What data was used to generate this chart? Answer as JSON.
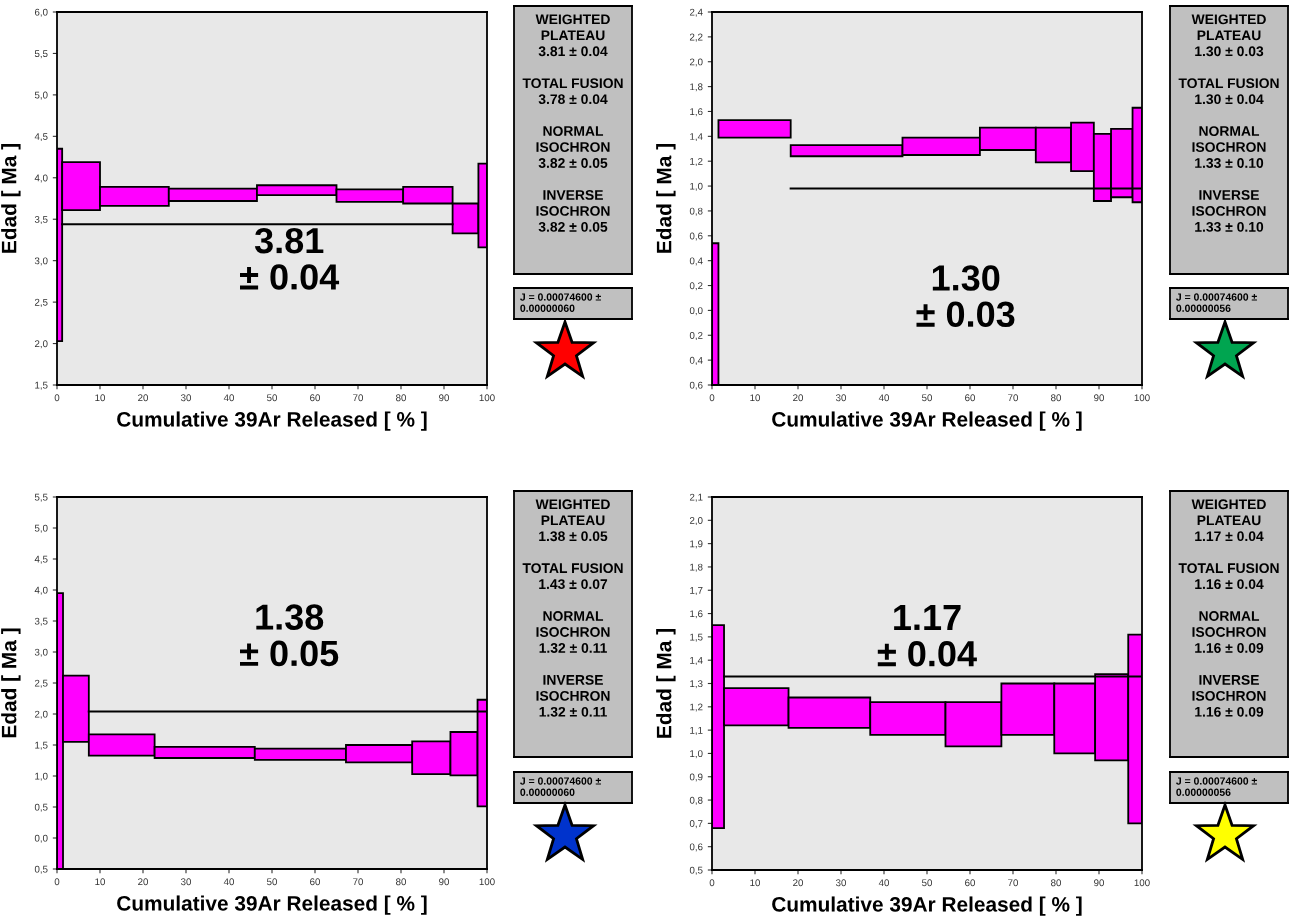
{
  "chart_data": [
    {
      "type": "histogram",
      "xlabel": "Cumulative 39Ar Released [ % ]",
      "ylabel": "Edad [ Ma ]",
      "xlim": [
        0,
        100
      ],
      "xticks": [
        0,
        10,
        20,
        30,
        40,
        50,
        60,
        70,
        80,
        90,
        100
      ],
      "ylim": [
        1.5,
        6.0
      ],
      "yticks": [
        {
          "value": 1.5,
          "label": "1,5"
        },
        {
          "value": 2.0,
          "label": "2,0"
        },
        {
          "value": 2.5,
          "label": "2,5"
        },
        {
          "value": 3.0,
          "label": "3,0"
        },
        {
          "value": 3.5,
          "label": "3,5"
        },
        {
          "value": 4.0,
          "label": "4,0"
        },
        {
          "value": 4.5,
          "label": "4,5"
        },
        {
          "value": 5.0,
          "label": "5,0"
        },
        {
          "value": 5.5,
          "label": "5,5"
        },
        {
          "value": 6.0,
          "label": "6,0"
        }
      ],
      "grid": false,
      "series": [
        {
          "color": "#ff00ff",
          "bins": [
            0,
            1.2,
            10,
            26,
            46.5,
            65,
            80.5,
            92,
            98,
            100
          ],
          "base": [
            2.03,
            3.61,
            3.66,
            3.72,
            3.79,
            3.71,
            3.69,
            3.33,
            3.16
          ],
          "values": [
            2.32,
            0.58,
            0.23,
            0.15,
            0.12,
            0.15,
            0.2,
            0.36,
            1.01
          ]
        },
        {
          "type": "line",
          "color": "#000000",
          "x": [
            1.2,
            92
          ],
          "values": [
            3.44,
            3.44
          ]
        }
      ],
      "annotations": [
        "3.81\n± 0.04",
        "WEIGHTED\nPLATEAU\n3.81 ± 0.04\n\nTOTAL FUSION\n3.78 ± 0.04\n\nNORMAL\nISOCHRON\n3.82 ± 0.05\n\nINVERSE\nISOCHRON\n3.82 ± 0.05",
        "J = 0.00074600 ±\n0.00000060"
      ]
    },
    {
      "type": "histogram",
      "xlabel": "Cumulative 39Ar Released [ % ]",
      "ylabel": "Edad [ Ma ]",
      "xlim": [
        0,
        100
      ],
      "xticks": [
        0,
        10,
        20,
        30,
        40,
        50,
        60,
        70,
        80,
        90,
        100
      ],
      "ylim": [
        -0.6,
        2.4
      ],
      "yticks": [
        {
          "value": -0.6,
          "label": "0,6"
        },
        {
          "value": -0.4,
          "label": "0,4"
        },
        {
          "value": -0.2,
          "label": "0,2"
        },
        {
          "value": 0.0,
          "label": "0,0"
        },
        {
          "value": 0.2,
          "label": "0,2"
        },
        {
          "value": 0.4,
          "label": "0,4"
        },
        {
          "value": 0.6,
          "label": "0,6"
        },
        {
          "value": 0.8,
          "label": "0,8"
        },
        {
          "value": 1.0,
          "label": "1,0"
        },
        {
          "value": 1.2,
          "label": "1,2"
        },
        {
          "value": 1.4,
          "label": "1,4"
        },
        {
          "value": 1.6,
          "label": "1,6"
        },
        {
          "value": 1.8,
          "label": "1,8"
        },
        {
          "value": 2.0,
          "label": "2,0"
        },
        {
          "value": 2.2,
          "label": "2,2"
        },
        {
          "value": 2.4,
          "label": "2,4"
        }
      ],
      "grid": false,
      "series": [
        {
          "color": "#ff00ff",
          "bins": [
            0,
            1.5,
            18.3,
            44.3,
            62.3,
            75.3,
            83.5,
            88.8,
            92.8,
            97.8,
            100
          ],
          "base": [
            -0.6,
            1.39,
            1.24,
            1.25,
            1.29,
            1.19,
            1.12,
            0.88,
            0.91,
            0.87
          ],
          "values": [
            1.14,
            0.14,
            0.09,
            0.14,
            0.18,
            0.28,
            0.39,
            0.54,
            0.55,
            0.76
          ]
        },
        {
          "type": "line",
          "color": "#000000",
          "x": [
            18.3,
            100
          ],
          "values": [
            0.98,
            0.98
          ]
        }
      ],
      "annotations": [
        "1.30\n± 0.03",
        "WEIGHTED\nPLATEAU\n1.30 ± 0.03\n\nTOTAL FUSION\n1.30 ± 0.04\n\nNORMAL\nISOCHRON\n1.33 ± 0.10\n\nINVERSE\nISOCHRON\n1.33 ± 0.10",
        "J = 0.00074600 ±\n0.00000056"
      ]
    },
    {
      "type": "histogram",
      "xlabel": "Cumulative 39Ar Released [ % ]",
      "ylabel": "Edad [ Ma ]",
      "xlim": [
        0,
        100
      ],
      "xticks": [
        0,
        10,
        20,
        30,
        40,
        50,
        60,
        70,
        80,
        90,
        100
      ],
      "ylim": [
        -0.5,
        5.5
      ],
      "yticks": [
        {
          "value": -0.5,
          "label": "0,5"
        },
        {
          "value": 0.0,
          "label": "0,0"
        },
        {
          "value": 0.5,
          "label": "0,5"
        },
        {
          "value": 1.0,
          "label": "1,0"
        },
        {
          "value": 1.5,
          "label": "1,5"
        },
        {
          "value": 2.0,
          "label": "2,0"
        },
        {
          "value": 2.5,
          "label": "2,5"
        },
        {
          "value": 3.0,
          "label": "3,0"
        },
        {
          "value": 3.5,
          "label": "3,5"
        },
        {
          "value": 4.0,
          "label": "4,0"
        },
        {
          "value": 4.5,
          "label": "4,5"
        },
        {
          "value": 5.0,
          "label": "5,0"
        },
        {
          "value": 5.5,
          "label": "5,5"
        }
      ],
      "grid": false,
      "series": [
        {
          "color": "#ff00ff",
          "bins": [
            0,
            1.4,
            7.4,
            22.7,
            46,
            67.2,
            82.6,
            91.5,
            97.8,
            100
          ],
          "base": [
            -0.5,
            1.55,
            1.33,
            1.29,
            1.26,
            1.22,
            1.03,
            1.01,
            0.51
          ],
          "values": [
            4.45,
            1.07,
            0.34,
            0.18,
            0.18,
            0.28,
            0.53,
            0.7,
            1.72
          ]
        },
        {
          "type": "line",
          "color": "#000000",
          "x": [
            7.4,
            100
          ],
          "values": [
            2.04,
            2.04
          ]
        }
      ],
      "annotations": [
        "1.38\n± 0.05",
        "WEIGHTED\nPLATEAU\n1.38 ± 0.05\n\nTOTAL FUSION\n1.43 ± 0.07\n\nNORMAL\nISOCHRON\n1.32 ± 0.11\n\nINVERSE\nISOCHRON\n1.32 ± 0.11",
        "J = 0.00074600 ±\n0.00000060"
      ]
    },
    {
      "type": "histogram",
      "xlabel": "Cumulative 39Ar Released [ % ]",
      "ylabel": "Edad [ Ma ]",
      "xlim": [
        0,
        100
      ],
      "xticks": [
        0,
        10,
        20,
        30,
        40,
        50,
        60,
        70,
        80,
        90,
        100
      ],
      "ylim": [
        0.5,
        2.1
      ],
      "yticks": [
        {
          "value": 0.5,
          "label": "0,5"
        },
        {
          "value": 0.6,
          "label": "0,6"
        },
        {
          "value": 0.7,
          "label": "0,7"
        },
        {
          "value": 0.8,
          "label": "0,8"
        },
        {
          "value": 0.9,
          "label": "0,9"
        },
        {
          "value": 1.0,
          "label": "1,0"
        },
        {
          "value": 1.1,
          "label": "1,1"
        },
        {
          "value": 1.2,
          "label": "1,2"
        },
        {
          "value": 1.3,
          "label": "1,3"
        },
        {
          "value": 1.4,
          "label": "1,4"
        },
        {
          "value": 1.5,
          "label": "1,5"
        },
        {
          "value": 1.6,
          "label": "1,6"
        },
        {
          "value": 1.7,
          "label": "1,7"
        },
        {
          "value": 1.8,
          "label": "1,8"
        },
        {
          "value": 1.9,
          "label": "1,9"
        },
        {
          "value": 2.0,
          "label": "2,0"
        },
        {
          "value": 2.1,
          "label": "2,1"
        }
      ],
      "grid": false,
      "series": [
        {
          "color": "#ff00ff",
          "bins": [
            0,
            2.8,
            17.8,
            36.8,
            54.3,
            67.3,
            79.6,
            89.1,
            96.8,
            100
          ],
          "base": [
            0.68,
            1.12,
            1.11,
            1.08,
            1.03,
            1.08,
            1.0,
            0.97,
            0.7
          ],
          "values": [
            0.87,
            0.16,
            0.13,
            0.14,
            0.19,
            0.22,
            0.3,
            0.37,
            0.81
          ]
        },
        {
          "type": "line",
          "color": "#000000",
          "x": [
            2.8,
            100
          ],
          "values": [
            1.33,
            1.33
          ]
        }
      ],
      "annotations": [
        "1.17\n± 0.04",
        "WEIGHTED\nPLATEAU\n1.17 ± 0.04\n\nTOTAL FUSION\n1.16 ± 0.04\n\nNORMAL\nISOCHRON\n1.16 ± 0.09\n\nINVERSE\nISOCHRON\n1.16 ± 0.09",
        "J = 0.00074600 ±\n0.00000056"
      ]
    }
  ]
}
